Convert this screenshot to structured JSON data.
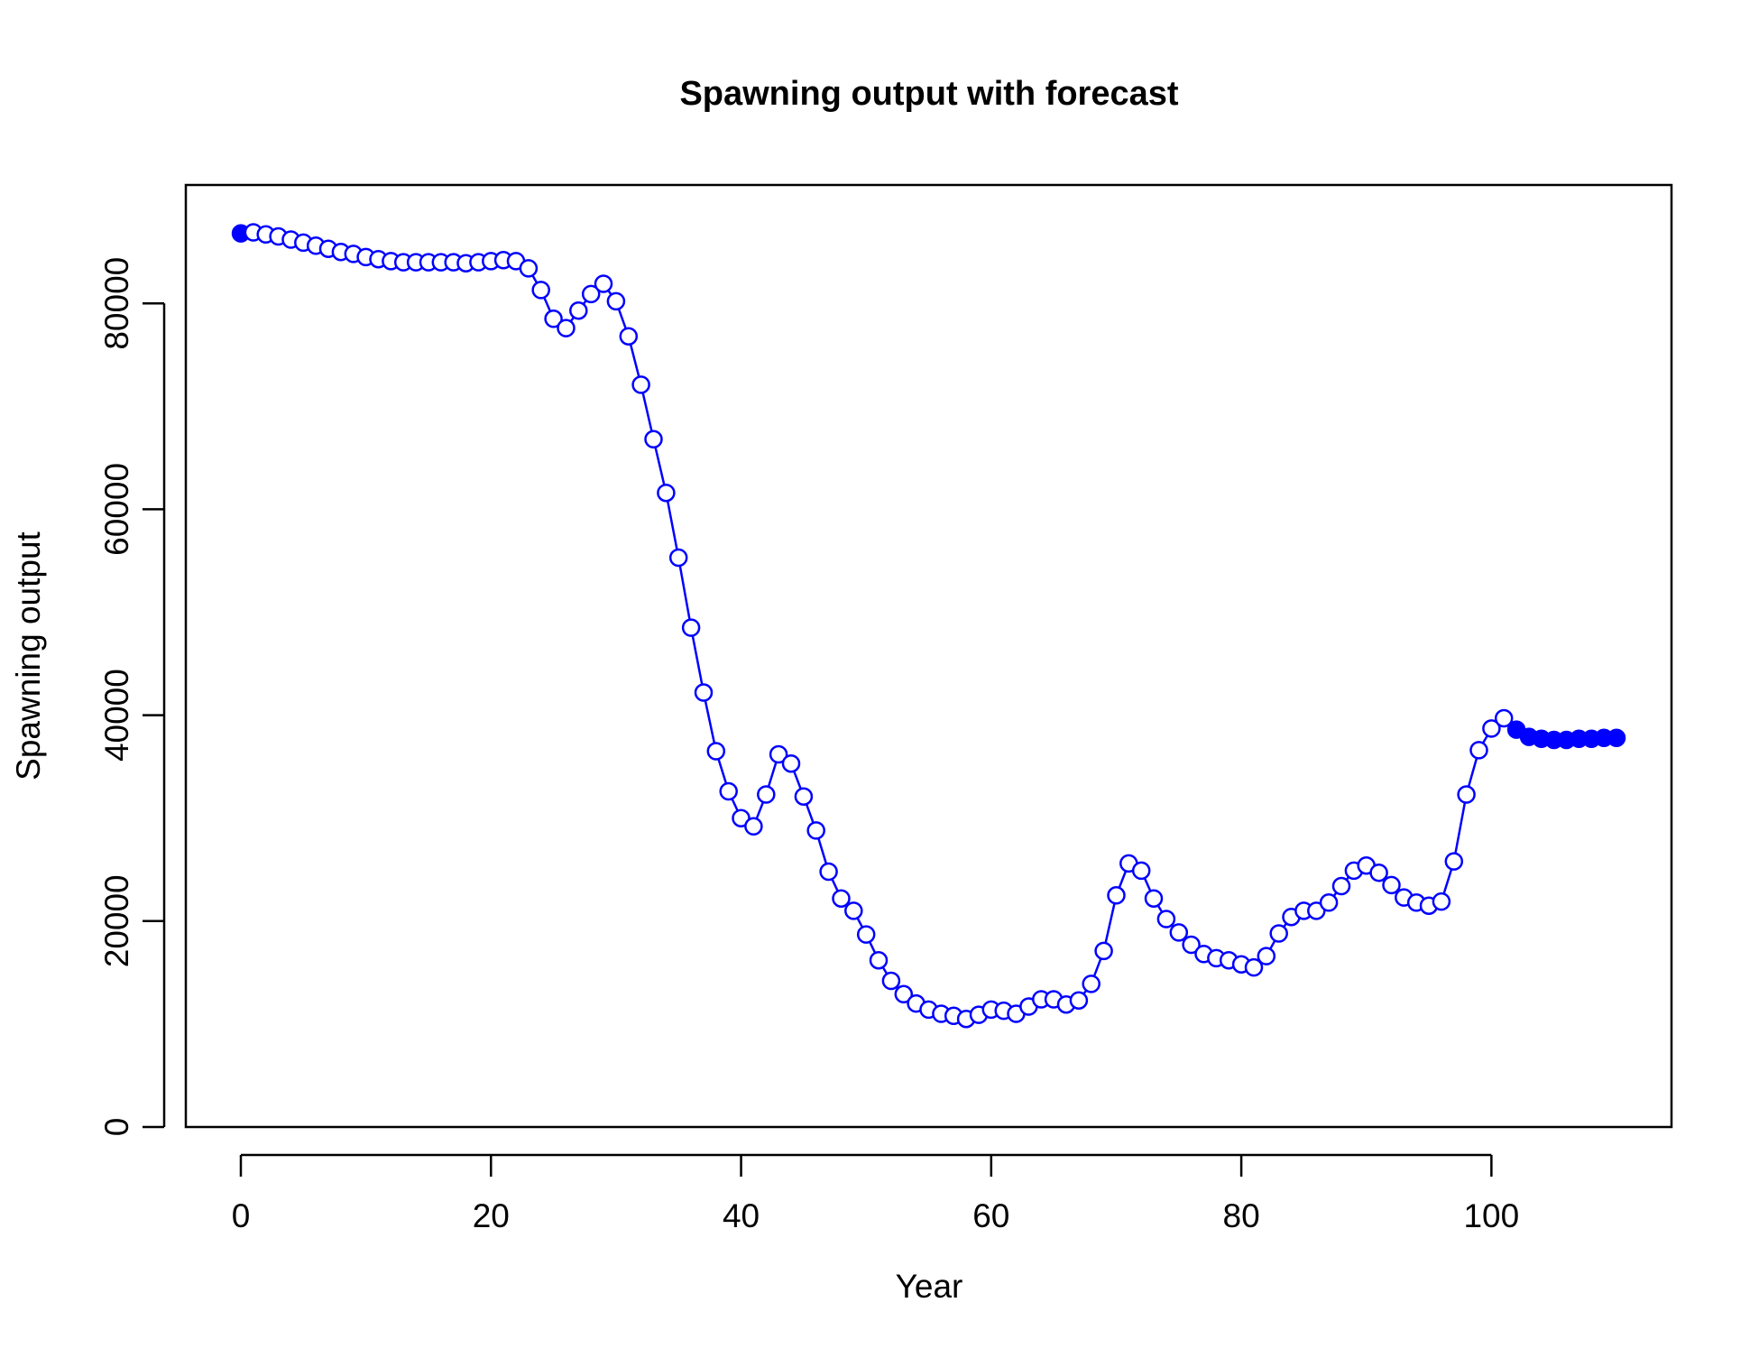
{
  "chart_data": {
    "type": "line",
    "title": "Spawning output with forecast",
    "xlabel": "Year",
    "ylabel": "Spawning output",
    "xlim": [
      -4.4,
      114.4
    ],
    "ylim": [
      0,
      91500
    ],
    "x_ticks": [
      0,
      20,
      40,
      60,
      80,
      100
    ],
    "y_ticks": [
      0,
      20000,
      40000,
      60000,
      80000
    ],
    "x_tick_labels": [
      "0",
      "20",
      "40",
      "60",
      "80",
      "100"
    ],
    "y_tick_labels": [
      "0",
      "20000",
      "40000",
      "60000",
      "80000"
    ],
    "grid": false,
    "legend": "none",
    "colors": {
      "series": "#0000ff",
      "axis": "#000000"
    },
    "series": [
      {
        "x": [
          0,
          1,
          2,
          3,
          4,
          5,
          6,
          7,
          8,
          9,
          10,
          11,
          12,
          13,
          14,
          15,
          16,
          17,
          18,
          19,
          20,
          21,
          22,
          23,
          24,
          25,
          26,
          27,
          28,
          29,
          30,
          31,
          32,
          33,
          34,
          35,
          36,
          37,
          38,
          39,
          40,
          41,
          42,
          43,
          44,
          45,
          46,
          47,
          48,
          49,
          50,
          51,
          52,
          53,
          54,
          55,
          56,
          57,
          58,
          59,
          60,
          61,
          62,
          63,
          64,
          65,
          66,
          67,
          68,
          69,
          70,
          71,
          72,
          73,
          74,
          75,
          76,
          77,
          78,
          79,
          80,
          81,
          82,
          83,
          84,
          85,
          86,
          87,
          88,
          89,
          90,
          91,
          92,
          93,
          94,
          95,
          96,
          97,
          98,
          99,
          100,
          101,
          102,
          103,
          104,
          105,
          106,
          107,
          108,
          109,
          110
        ],
        "values": [
          86800,
          86900,
          86700,
          86500,
          86200,
          85900,
          85600,
          85300,
          85000,
          84800,
          84500,
          84300,
          84100,
          84000,
          84000,
          84000,
          84000,
          84000,
          83900,
          84000,
          84100,
          84200,
          84100,
          83400,
          81300,
          78500,
          77600,
          79300,
          80900,
          81900,
          80200,
          76800,
          72100,
          66800,
          61600,
          55300,
          48500,
          42200,
          36500,
          32600,
          30000,
          29200,
          32300,
          36200,
          35300,
          32100,
          28800,
          24800,
          22200,
          21000,
          18700,
          16200,
          14200,
          12900,
          12000,
          11400,
          11000,
          10800,
          10500,
          10900,
          11400,
          11300,
          11000,
          11700,
          12400,
          12400,
          11900,
          12300,
          13900,
          17100,
          22500,
          25600,
          24900,
          22200,
          20200,
          18900,
          17700,
          16800,
          16400,
          16200,
          15800,
          15500,
          16600,
          18800,
          20400,
          21000,
          21000,
          21800,
          23400,
          24900,
          25400,
          24700,
          23500,
          22300,
          21800,
          21500,
          21900,
          25800,
          32300,
          36600,
          38700,
          39700,
          38600,
          37900,
          37700,
          37600,
          37600,
          37700,
          37700,
          37800,
          37800
        ],
        "forecast_from_x": 102
      }
    ]
  }
}
